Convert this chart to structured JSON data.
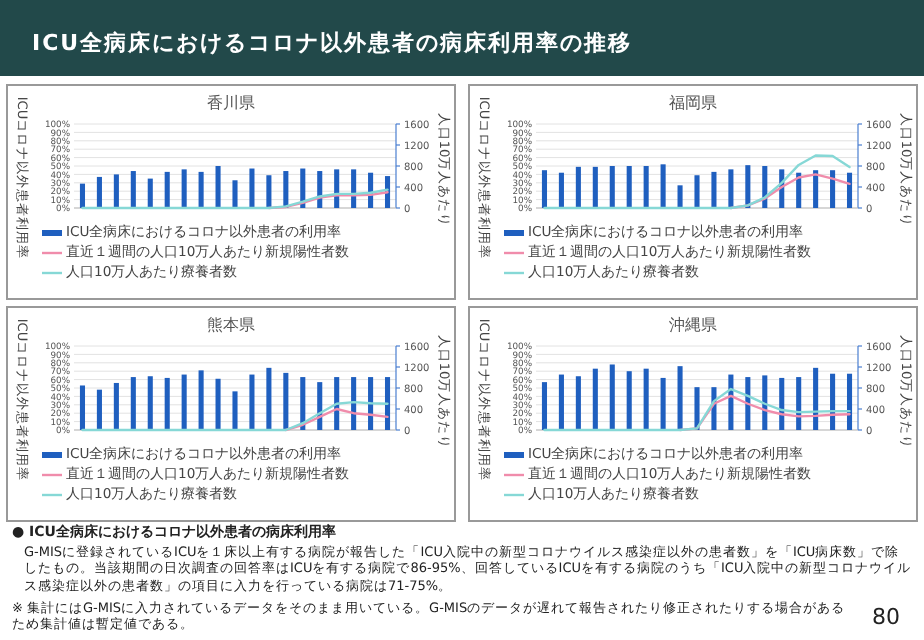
{
  "chart_data": [
    {
      "type": "bar",
      "title": "香川県",
      "categories": [
        null,
        null,
        null,
        null,
        null,
        null,
        null,
        null,
        null,
        null,
        null,
        null,
        null,
        null,
        null,
        null,
        null,
        null,
        null
      ],
      "ylabel": "ICUコロナ以外患者利用率",
      "y2label": "人口10万人あたり",
      "ylim": [
        0,
        100
      ],
      "yticks": [
        {
          "value": 0,
          "label": "0%"
        },
        {
          "value": 10,
          "label": "10%"
        },
        {
          "value": 20,
          "label": "20%"
        },
        {
          "value": 30,
          "label": "30%"
        },
        {
          "value": 40,
          "label": "40%"
        },
        {
          "value": 50,
          "label": "50%"
        },
        {
          "value": 60,
          "label": "60%"
        },
        {
          "value": 70,
          "label": "70%"
        },
        {
          "value": 80,
          "label": "80%"
        },
        {
          "value": 90,
          "label": "90%"
        },
        {
          "value": 100,
          "label": "100%"
        }
      ],
      "y2lim": [
        0,
        1600
      ],
      "y2ticks": [
        0,
        400,
        800,
        1200,
        1600
      ],
      "grid": "y",
      "legend": "bottom",
      "series": [
        {
          "name": "ICU全病床におけるコロナ以外患者の利用率",
          "type": "bar",
          "color": "#1f5fbf",
          "values": [
            29,
            37,
            40,
            44,
            35,
            43,
            46,
            43,
            50,
            33,
            47,
            39,
            44,
            47,
            44,
            46,
            46,
            42,
            38
          ]
        },
        {
          "name": "直近１週間の人口10万人あたり新規陽性者数",
          "type": "line",
          "axis": "y2",
          "color": "#f08cab",
          "values": [
            null,
            null,
            null,
            null,
            null,
            null,
            null,
            null,
            null,
            null,
            null,
            0,
            20,
            100,
            200,
            240,
            240,
            250,
            300
          ]
        },
        {
          "name": "人口10万人あたり療養者数",
          "type": "line",
          "axis": "y2",
          "color": "#86d8d6",
          "values": [
            0,
            0,
            0,
            0,
            0,
            0,
            0,
            0,
            0,
            0,
            0,
            0,
            30,
            120,
            220,
            270,
            270,
            290,
            350
          ]
        }
      ]
    },
    {
      "type": "bar",
      "title": "福岡県",
      "categories": [
        null,
        null,
        null,
        null,
        null,
        null,
        null,
        null,
        null,
        null,
        null,
        null,
        null,
        null,
        null,
        null,
        null,
        null,
        null
      ],
      "ylabel": "ICUコロナ以外患者利用率",
      "y2label": "人口10万人あたり",
      "ylim": [
        0,
        100
      ],
      "yticks": [
        {
          "value": 0,
          "label": "0%"
        },
        {
          "value": 10,
          "label": "10%"
        },
        {
          "value": 20,
          "label": "20%"
        },
        {
          "value": 30,
          "label": "30%"
        },
        {
          "value": 40,
          "label": "40%"
        },
        {
          "value": 50,
          "label": "50%"
        },
        {
          "value": 60,
          "label": "60%"
        },
        {
          "value": 70,
          "label": "70%"
        },
        {
          "value": 80,
          "label": "80%"
        },
        {
          "value": 90,
          "label": "90%"
        },
        {
          "value": 100,
          "label": "100%"
        }
      ],
      "y2lim": [
        0,
        1600
      ],
      "y2ticks": [
        0,
        400,
        800,
        1200,
        1600
      ],
      "grid": "y",
      "legend": "bottom",
      "series": [
        {
          "name": "ICU全病床におけるコロナ以外患者の利用率",
          "type": "bar",
          "color": "#1f5fbf",
          "values": [
            45,
            42,
            49,
            49,
            50,
            50,
            50,
            52,
            27,
            39,
            43,
            46,
            51,
            50,
            46,
            42,
            45,
            45,
            42
          ]
        },
        {
          "name": "直近１週間の人口10万人あたり新規陽性者数",
          "type": "line",
          "axis": "y2",
          "color": "#f08cab",
          "values": [
            null,
            null,
            null,
            null,
            null,
            null,
            null,
            null,
            null,
            null,
            null,
            0,
            50,
            180,
            400,
            580,
            640,
            560,
            460
          ]
        },
        {
          "name": "人口10万人あたり療養者数",
          "type": "line",
          "axis": "y2",
          "color": "#86d8d6",
          "values": [
            0,
            0,
            0,
            0,
            0,
            0,
            0,
            0,
            0,
            0,
            0,
            0,
            50,
            200,
            480,
            820,
            1000,
            990,
            780
          ]
        }
      ]
    },
    {
      "type": "bar",
      "title": "熊本県",
      "categories": [
        null,
        null,
        null,
        null,
        null,
        null,
        null,
        null,
        null,
        null,
        null,
        null,
        null,
        null,
        null,
        null,
        null,
        null,
        null
      ],
      "ylabel": "ICUコロナ以外患者利用率",
      "y2label": "人口10万人あたり",
      "ylim": [
        0,
        100
      ],
      "yticks": [
        {
          "value": 0,
          "label": "0%"
        },
        {
          "value": 10,
          "label": "10%"
        },
        {
          "value": 20,
          "label": "20%"
        },
        {
          "value": 30,
          "label": "30%"
        },
        {
          "value": 40,
          "label": "40%"
        },
        {
          "value": 50,
          "label": "50%"
        },
        {
          "value": 60,
          "label": "60%"
        },
        {
          "value": 70,
          "label": "70%"
        },
        {
          "value": 80,
          "label": "80%"
        },
        {
          "value": 90,
          "label": "90%"
        },
        {
          "value": 100,
          "label": "100%"
        }
      ],
      "y2lim": [
        0,
        1600
      ],
      "y2ticks": [
        0,
        400,
        800,
        1200,
        1600
      ],
      "grid": "y",
      "legend": "bottom",
      "series": [
        {
          "name": "ICU全病床におけるコロナ以外患者の利用率",
          "type": "bar",
          "color": "#1f5fbf",
          "values": [
            53,
            48,
            56,
            63,
            64,
            62,
            66,
            71,
            61,
            46,
            66,
            74,
            68,
            63,
            57,
            63,
            63,
            63,
            63
          ]
        },
        {
          "name": "直近１週間の人口10万人あたり新規陽性者数",
          "type": "line",
          "axis": "y2",
          "color": "#f08cab",
          "values": [
            null,
            null,
            null,
            null,
            null,
            null,
            null,
            null,
            null,
            null,
            null,
            null,
            0,
            100,
            250,
            400,
            320,
            290,
            250
          ]
        },
        {
          "name": "人口10万人あたり療養者数",
          "type": "line",
          "axis": "y2",
          "color": "#86d8d6",
          "values": [
            0,
            0,
            0,
            0,
            0,
            0,
            0,
            0,
            0,
            0,
            0,
            0,
            0,
            130,
            320,
            500,
            530,
            510,
            500
          ]
        }
      ]
    },
    {
      "type": "bar",
      "title": "沖縄県",
      "categories": [
        null,
        null,
        null,
        null,
        null,
        null,
        null,
        null,
        null,
        null,
        null,
        null,
        null,
        null,
        null,
        null,
        null,
        null,
        null
      ],
      "ylabel": "ICUコロナ以外患者利用率",
      "y2label": "人口10万人あたり",
      "ylim": [
        0,
        100
      ],
      "yticks": [
        {
          "value": 0,
          "label": "0%"
        },
        {
          "value": 10,
          "label": "10%"
        },
        {
          "value": 20,
          "label": "20%"
        },
        {
          "value": 30,
          "label": "30%"
        },
        {
          "value": 40,
          "label": "40%"
        },
        {
          "value": 50,
          "label": "50%"
        },
        {
          "value": 60,
          "label": "60%"
        },
        {
          "value": 70,
          "label": "70%"
        },
        {
          "value": 80,
          "label": "80%"
        },
        {
          "value": 90,
          "label": "90%"
        },
        {
          "value": 100,
          "label": "100%"
        }
      ],
      "y2lim": [
        0,
        1600
      ],
      "y2ticks": [
        0,
        400,
        800,
        1200,
        1600
      ],
      "grid": "y",
      "legend": "bottom",
      "series": [
        {
          "name": "ICU全病床におけるコロナ以外患者の利用率",
          "type": "bar",
          "color": "#1f5fbf",
          "values": [
            57,
            66,
            64,
            73,
            78,
            70,
            73,
            62,
            76,
            51,
            51,
            66,
            63,
            65,
            62,
            63,
            74,
            67,
            67
          ]
        },
        {
          "name": "直近１週間の人口10万人あたり新規陽性者数",
          "type": "line",
          "axis": "y2",
          "color": "#f08cab",
          "values": [
            null,
            null,
            null,
            null,
            null,
            null,
            null,
            null,
            0,
            30,
            500,
            650,
            500,
            380,
            300,
            260,
            270,
            290,
            300
          ]
        },
        {
          "name": "人口10万人あたり療養者数",
          "type": "line",
          "axis": "y2",
          "color": "#86d8d6",
          "values": [
            0,
            0,
            0,
            0,
            0,
            0,
            0,
            0,
            0,
            30,
            550,
            780,
            650,
            500,
            380,
            340,
            350,
            360,
            360
          ]
        }
      ]
    },
    {
      "type": "other",
      "title": "ICU全病床におけるコロナ以外患者の病床利用率の推移",
      "annotations": [
        "● ICU全病床におけるコロナ以外患者の病床利用率",
        "G-MISに登録されているICUを１床以上有する病院が報告した「ICU入院中の新型コロナウイルス感染症以外の患者数」を「ICU病床数」で除したもの。当該期間の日次調査の回答率はICUを有する病院で86-95%、回答しているICUを有する病院のうち「ICU入院中の新型コロナウイルス感染症以外の患者数」の項目に入力を行っている病院は71-75%。",
        "※ 集計にはG-MISに入力されているデータをそのまま用いている。G-MISのデータが遅れて報告されたり修正されたりする場合があるため集計値は暫定値である。",
        "80"
      ]
    }
  ]
}
